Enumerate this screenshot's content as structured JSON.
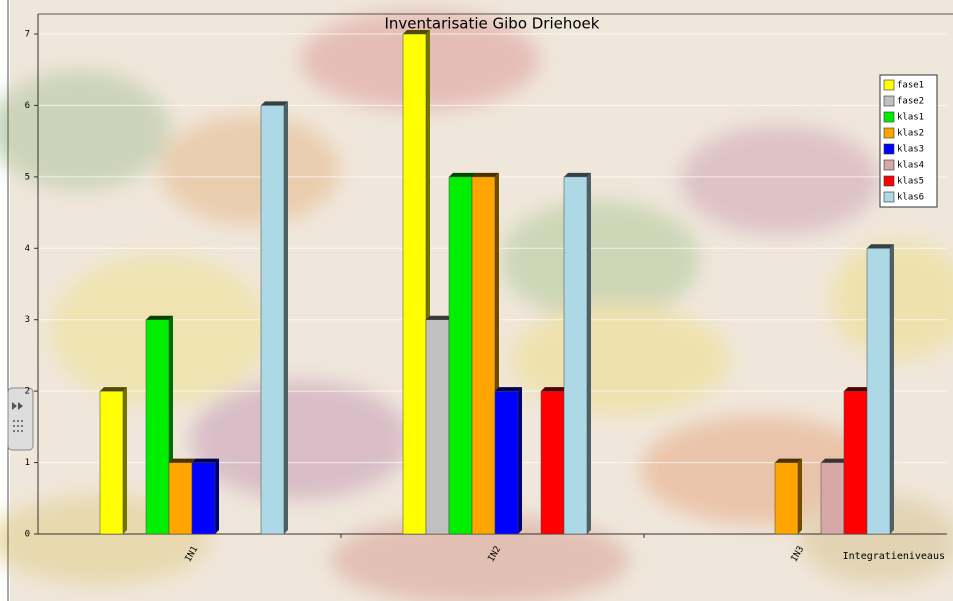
{
  "chart_data": {
    "type": "bar",
    "title": "Inventarisatie Gibo Driehoek",
    "x_label": "Integratieniveaus",
    "categories": [
      "IN1",
      "IN2",
      "IN3"
    ],
    "series": [
      {
        "name": "fase1",
        "color": "#ffff00",
        "values": [
          2,
          7,
          0
        ]
      },
      {
        "name": "fase2",
        "color": "#c0c0c0",
        "values": [
          0,
          3,
          0
        ]
      },
      {
        "name": "klas1",
        "color": "#00ee00",
        "values": [
          3,
          5,
          0
        ]
      },
      {
        "name": "klas2",
        "color": "#ffa500",
        "values": [
          1,
          5,
          1
        ]
      },
      {
        "name": "klas3",
        "color": "#0000ff",
        "values": [
          1,
          2,
          0
        ]
      },
      {
        "name": "klas4",
        "color": "#d8a8a8",
        "values": [
          0,
          0,
          1
        ]
      },
      {
        "name": "klas5",
        "color": "#ff0000",
        "values": [
          0,
          2,
          2
        ]
      },
      {
        "name": "klas6",
        "color": "#add8e6",
        "values": [
          6,
          5,
          4
        ]
      }
    ],
    "ylim": [
      0,
      7
    ],
    "yticks": [
      0,
      1,
      2,
      3,
      4,
      5,
      6,
      7
    ],
    "grid": true,
    "legend": "upper right"
  }
}
